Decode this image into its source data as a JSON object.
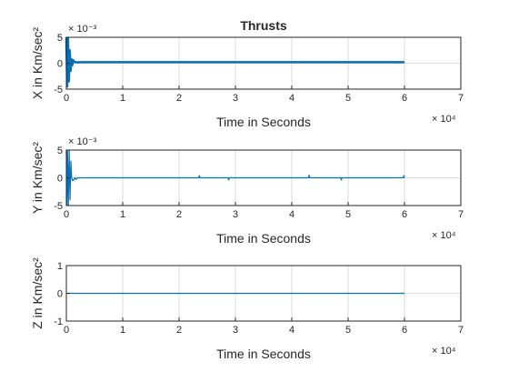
{
  "chart_data": [
    {
      "type": "line",
      "title": "Thrusts",
      "xlabel": "Time in Seconds",
      "ylabel": "X in Km/sec²",
      "xlim": [
        0,
        70000
      ],
      "ylim": [
        -0.005,
        0.005
      ],
      "xticks": [
        0,
        10000,
        20000,
        30000,
        40000,
        50000,
        60000,
        70000
      ],
      "xtick_labels": [
        "0",
        "1",
        "2",
        "3",
        "4",
        "5",
        "6",
        "7"
      ],
      "x_exponent": "× 10⁴",
      "yticks": [
        -0.005,
        0,
        0.005
      ],
      "ytick_labels": [
        "-5",
        "0",
        "5"
      ],
      "y_exponent": "× 10⁻³",
      "grid": true,
      "color": "#0072BD",
      "series": [
        {
          "x": [
            0,
            150,
            300,
            450,
            600,
            750,
            900,
            1050,
            1200,
            1400,
            1600,
            2000,
            3000,
            10000,
            20000,
            30000,
            40000,
            50000,
            60000
          ],
          "y": [
            0.005,
            -0.0045,
            0.0048,
            -0.0035,
            0.0025,
            -0.0015,
            0.0008,
            -0.0004,
            0.0006,
            0.0003,
            0.0002,
            0.00018,
            0.0002,
            0.0002,
            0.0002,
            0.0002,
            0.0002,
            0.0002,
            0.0002
          ]
        }
      ]
    },
    {
      "type": "line",
      "title": "",
      "xlabel": "Time in Seconds",
      "ylabel": "Y in Km/sec²",
      "xlim": [
        0,
        70000
      ],
      "ylim": [
        -0.005,
        0.005
      ],
      "xticks": [
        0,
        10000,
        20000,
        30000,
        40000,
        50000,
        60000,
        70000
      ],
      "xtick_labels": [
        "0",
        "1",
        "2",
        "3",
        "4",
        "5",
        "6",
        "7"
      ],
      "x_exponent": "× 10⁴",
      "yticks": [
        -0.005,
        0,
        0.005
      ],
      "ytick_labels": [
        "-5",
        "0",
        "5"
      ],
      "y_exponent": "× 10⁻³",
      "grid": true,
      "color": "#0072BD",
      "series": [
        {
          "x": [
            0,
            100,
            200,
            350,
            500,
            650,
            800,
            950,
            1100,
            1300,
            1500,
            1700,
            2000,
            23500,
            23600,
            23700,
            28700,
            28800,
            28900,
            43000,
            43100,
            43200,
            48700,
            48800,
            48900,
            59800,
            59900,
            60000
          ],
          "y": [
            0.005,
            -0.005,
            0.005,
            -0.005,
            0.005,
            -0.004,
            0.003,
            0.0,
            -0.0005,
            -0.0004,
            0.0,
            -0.0003,
            0.0,
            0.0,
            0.0004,
            0.0,
            0.0,
            -0.0004,
            0.0,
            0.0,
            0.0005,
            0.0,
            0.0,
            -0.0004,
            0.0,
            0.0,
            0.0004,
            0.0
          ]
        }
      ]
    },
    {
      "type": "line",
      "title": "",
      "xlabel": "Time in Seconds",
      "ylabel": "Z in Km/sec²",
      "xlim": [
        0,
        70000
      ],
      "ylim": [
        -1,
        1
      ],
      "xticks": [
        0,
        10000,
        20000,
        30000,
        40000,
        50000,
        60000,
        70000
      ],
      "xtick_labels": [
        "0",
        "1",
        "2",
        "3",
        "4",
        "5",
        "6",
        "7"
      ],
      "x_exponent": "× 10⁴",
      "yticks": [
        -1,
        0,
        1
      ],
      "ytick_labels": [
        "-1",
        "0",
        "1"
      ],
      "y_exponent": "",
      "grid": true,
      "color": "#0072BD",
      "series": [
        {
          "x": [
            0,
            60000
          ],
          "y": [
            0,
            0
          ]
        }
      ]
    }
  ]
}
